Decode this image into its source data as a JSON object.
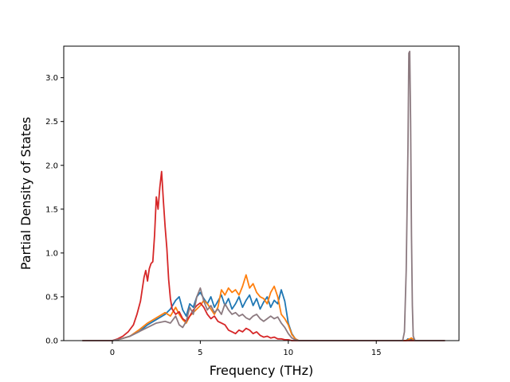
{
  "chart_data": {
    "type": "line",
    "title": "",
    "xlabel": "Frequency (THz)",
    "ylabel": "Partial Density of States",
    "xlim": [
      -2.76,
      19.7
    ],
    "ylim": [
      0,
      3.36
    ],
    "xticks": [
      0,
      5,
      10,
      15
    ],
    "xtick_labels": [
      "0",
      "5",
      "10",
      "15"
    ],
    "yticks": [
      0,
      0.5,
      1.0,
      1.5,
      2.0,
      2.5,
      3.0
    ],
    "ytick_labels": [
      "0.0",
      "0.5",
      "1.0",
      "1.5",
      "2.0",
      "2.5",
      "3.0"
    ],
    "grid": false,
    "legend": "none",
    "series": [
      {
        "color": "#1f77b4",
        "x": [
          -1.7,
          0.0,
          0.5,
          1.0,
          1.5,
          2.0,
          2.5,
          3.0,
          3.3,
          3.6,
          3.8,
          4.0,
          4.2,
          4.4,
          4.6,
          4.8,
          5.0,
          5.2,
          5.4,
          5.6,
          5.8,
          6.0,
          6.2,
          6.4,
          6.6,
          6.8,
          7.0,
          7.2,
          7.4,
          7.6,
          7.8,
          8.0,
          8.2,
          8.4,
          8.6,
          8.8,
          9.0,
          9.2,
          9.4,
          9.6,
          9.8,
          10.0,
          10.2,
          10.4,
          10.6,
          10.8,
          11.0,
          16.5,
          16.7,
          16.8,
          16.9,
          17.0,
          17.1,
          17.2,
          17.4,
          18.9
        ],
        "y": [
          0,
          0,
          0.02,
          0.05,
          0.1,
          0.18,
          0.24,
          0.3,
          0.36,
          0.46,
          0.5,
          0.35,
          0.28,
          0.42,
          0.38,
          0.5,
          0.55,
          0.48,
          0.42,
          0.5,
          0.38,
          0.45,
          0.52,
          0.4,
          0.48,
          0.36,
          0.42,
          0.5,
          0.38,
          0.46,
          0.52,
          0.4,
          0.48,
          0.36,
          0.44,
          0.5,
          0.38,
          0.46,
          0.42,
          0.58,
          0.45,
          0.2,
          0.08,
          0.02,
          0,
          0,
          0,
          0,
          0,
          0.02,
          0.01,
          0.01,
          0.02,
          0,
          0,
          0
        ]
      },
      {
        "color": "#ff7f0e",
        "x": [
          -1.7,
          0.0,
          0.5,
          1.0,
          1.5,
          2.0,
          2.5,
          3.0,
          3.3,
          3.6,
          3.8,
          4.0,
          4.2,
          4.4,
          4.6,
          4.8,
          5.0,
          5.2,
          5.4,
          5.6,
          5.8,
          6.0,
          6.2,
          6.4,
          6.6,
          6.8,
          7.0,
          7.2,
          7.4,
          7.6,
          7.8,
          8.0,
          8.2,
          8.4,
          8.6,
          8.8,
          9.0,
          9.2,
          9.4,
          9.6,
          9.8,
          10.0,
          10.2,
          10.4,
          10.6,
          10.8,
          11.0,
          16.5,
          16.7,
          16.8,
          16.9,
          17.0,
          17.1,
          17.2,
          17.4,
          18.9
        ],
        "y": [
          0,
          0,
          0.02,
          0.05,
          0.12,
          0.2,
          0.26,
          0.32,
          0.28,
          0.38,
          0.3,
          0.24,
          0.2,
          0.28,
          0.32,
          0.36,
          0.4,
          0.46,
          0.42,
          0.36,
          0.3,
          0.38,
          0.58,
          0.52,
          0.6,
          0.55,
          0.58,
          0.52,
          0.62,
          0.75,
          0.6,
          0.65,
          0.55,
          0.5,
          0.48,
          0.42,
          0.55,
          0.62,
          0.5,
          0.3,
          0.25,
          0.18,
          0.07,
          0.02,
          0,
          0,
          0,
          0,
          0,
          0.01,
          0.02,
          0.03,
          0.01,
          0,
          0,
          0
        ]
      },
      {
        "color": "#d62728",
        "x": [
          -1.7,
          0.0,
          0.3,
          0.6,
          0.9,
          1.2,
          1.4,
          1.6,
          1.8,
          1.9,
          2.0,
          2.1,
          2.2,
          2.3,
          2.4,
          2.5,
          2.6,
          2.7,
          2.8,
          2.9,
          3.0,
          3.1,
          3.2,
          3.3,
          3.4,
          3.6,
          3.8,
          4.0,
          4.2,
          4.4,
          4.6,
          4.8,
          5.0,
          5.2,
          5.4,
          5.6,
          5.8,
          6.0,
          6.2,
          6.4,
          6.6,
          6.8,
          7.0,
          7.2,
          7.4,
          7.6,
          7.8,
          8.0,
          8.2,
          8.4,
          8.6,
          8.8,
          9.0,
          9.2,
          9.4,
          9.6,
          9.8,
          10.0,
          10.2,
          10.4,
          18.9
        ],
        "y": [
          0,
          0,
          0.02,
          0.05,
          0.1,
          0.18,
          0.3,
          0.45,
          0.72,
          0.8,
          0.68,
          0.82,
          0.88,
          0.9,
          1.2,
          1.64,
          1.5,
          1.75,
          1.93,
          1.6,
          1.3,
          1.05,
          0.7,
          0.48,
          0.36,
          0.3,
          0.33,
          0.25,
          0.22,
          0.28,
          0.35,
          0.4,
          0.43,
          0.38,
          0.3,
          0.25,
          0.28,
          0.22,
          0.2,
          0.18,
          0.12,
          0.1,
          0.08,
          0.12,
          0.1,
          0.14,
          0.12,
          0.08,
          0.1,
          0.06,
          0.04,
          0.05,
          0.03,
          0.04,
          0.02,
          0.02,
          0.01,
          0.01,
          0,
          0,
          0
        ]
      },
      {
        "color": "#8c7a80",
        "x": [
          -1.7,
          0.0,
          0.5,
          1.0,
          1.5,
          2.0,
          2.5,
          3.0,
          3.3,
          3.6,
          3.8,
          4.0,
          4.2,
          4.4,
          4.6,
          4.8,
          5.0,
          5.2,
          5.4,
          5.6,
          5.8,
          6.0,
          6.2,
          6.4,
          6.6,
          6.8,
          7.0,
          7.2,
          7.4,
          7.6,
          7.8,
          8.0,
          8.2,
          8.4,
          8.6,
          8.8,
          9.0,
          9.2,
          9.4,
          9.6,
          9.8,
          10.0,
          10.2,
          10.4,
          10.6,
          10.8,
          11.0,
          16.5,
          16.6,
          16.7,
          16.8,
          16.85,
          16.9,
          16.95,
          17.0,
          17.05,
          17.1,
          17.2,
          17.4,
          18.9
        ],
        "y": [
          0,
          0,
          0.02,
          0.05,
          0.1,
          0.15,
          0.2,
          0.22,
          0.2,
          0.28,
          0.18,
          0.15,
          0.22,
          0.38,
          0.3,
          0.5,
          0.6,
          0.45,
          0.35,
          0.4,
          0.32,
          0.36,
          0.3,
          0.42,
          0.35,
          0.3,
          0.32,
          0.28,
          0.3,
          0.26,
          0.24,
          0.28,
          0.3,
          0.25,
          0.22,
          0.25,
          0.28,
          0.25,
          0.27,
          0.2,
          0.15,
          0.08,
          0.03,
          0.01,
          0,
          0,
          0,
          0,
          0.1,
          0.8,
          2.2,
          3.28,
          3.3,
          2.5,
          1.2,
          0.4,
          0.05,
          0,
          0,
          0
        ]
      }
    ]
  }
}
